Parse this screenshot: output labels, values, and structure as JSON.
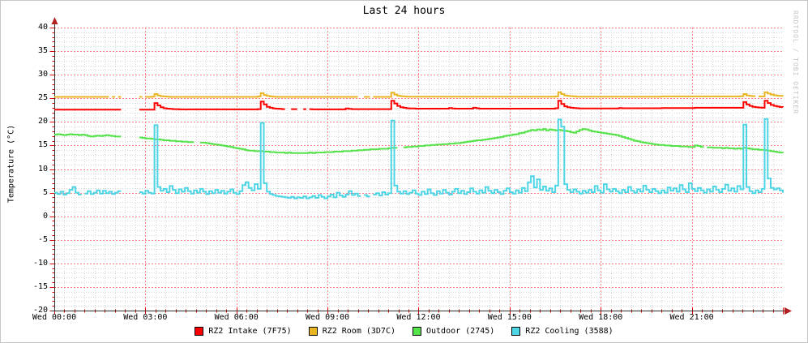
{
  "title": "Last 24 hours",
  "watermark": "RRDTOOL / TOBI OETIKER",
  "colors": {
    "background": "#ffffff",
    "border": "#c6c6c6",
    "axis": "#303030",
    "arrow": "#b22222",
    "tick": "#dd0000",
    "grid_minor": "#d6d6d6",
    "grid_major": "#ff8585",
    "text": "#000000",
    "watermark": "#c4c4c4"
  },
  "chart_data": {
    "type": "line",
    "title": "Last 24 hours",
    "xlabel": "",
    "ylabel": "Temperature (°C)",
    "ylim": [
      -20,
      40
    ],
    "y_tick_step": 5,
    "y_minor_step": 1,
    "y_tick_values": [
      40,
      35,
      30,
      25,
      20,
      15,
      10,
      5,
      0,
      -5,
      -10,
      -15,
      -20
    ],
    "x_range_hours": [
      0,
      24
    ],
    "x_minor_step_minutes": 20,
    "x_major_ticks": [
      {
        "hour": 0,
        "label": "Wed 00:00"
      },
      {
        "hour": 3,
        "label": "Wed 03:00"
      },
      {
        "hour": 6,
        "label": "Wed 06:00"
      },
      {
        "hour": 9,
        "label": "Wed 09:00"
      },
      {
        "hour": 12,
        "label": "Wed 12:00"
      },
      {
        "hour": 15,
        "label": "Wed 15:00"
      },
      {
        "hour": 18,
        "label": "Wed 18:00"
      },
      {
        "hour": 21,
        "label": "Wed 21:00"
      }
    ],
    "grid": true,
    "legend_position": "bottom",
    "sample_step_hours": 0.1,
    "series": [
      {
        "name": "RZ2 Intake (7F75)",
        "color": "#ff0000",
        "values": [
          22.6,
          22.6,
          22.6,
          22.6,
          22.6,
          22.6,
          22.6,
          22.6,
          22.6,
          22.6,
          22.6,
          22.6,
          22.6,
          22.6,
          22.6,
          22.6,
          22.6,
          22.6,
          22.6,
          22.6,
          22.6,
          22.6,
          null,
          null,
          null,
          null,
          null,
          null,
          22.6,
          22.6,
          22.6,
          22.6,
          22.6,
          24.0,
          23.5,
          23.1,
          22.9,
          22.8,
          22.75,
          22.7,
          22.7,
          22.65,
          22.65,
          22.65,
          22.65,
          22.65,
          22.65,
          22.65,
          22.65,
          22.65,
          22.65,
          22.65,
          22.65,
          22.65,
          22.65,
          22.65,
          22.65,
          22.65,
          22.65,
          22.65,
          22.65,
          22.65,
          22.65,
          22.65,
          22.65,
          22.65,
          22.65,
          22.7,
          24.3,
          23.7,
          23.2,
          23.0,
          22.85,
          22.8,
          22.75,
          22.7,
          null,
          null,
          22.7,
          22.7,
          null,
          null,
          22.7,
          null,
          22.7,
          22.65,
          22.65,
          22.65,
          22.65,
          22.65,
          22.65,
          22.65,
          22.65,
          22.65,
          22.65,
          22.65,
          22.85,
          22.75,
          22.7,
          22.7,
          22.7,
          22.7,
          22.7,
          22.7,
          22.7,
          22.7,
          22.7,
          22.7,
          22.7,
          22.7,
          22.7,
          24.5,
          23.9,
          23.4,
          23.1,
          23.0,
          22.9,
          22.85,
          22.85,
          22.8,
          22.8,
          22.8,
          22.8,
          22.8,
          22.8,
          22.8,
          22.8,
          22.8,
          22.8,
          22.8,
          22.95,
          22.85,
          22.8,
          22.8,
          22.8,
          22.8,
          22.8,
          22.8,
          23.0,
          22.9,
          22.8,
          22.8,
          22.8,
          22.8,
          22.8,
          22.8,
          22.8,
          22.8,
          22.8,
          22.8,
          22.8,
          22.8,
          22.8,
          22.8,
          22.8,
          22.8,
          22.8,
          22.8,
          22.8,
          22.8,
          22.8,
          22.8,
          22.8,
          22.8,
          22.8,
          22.9,
          24.5,
          23.8,
          23.3,
          23.1,
          23.0,
          22.95,
          22.9,
          22.85,
          22.85,
          22.85,
          22.85,
          22.85,
          22.85,
          22.85,
          22.85,
          22.85,
          22.85,
          22.85,
          22.85,
          22.85,
          22.95,
          22.9,
          22.9,
          22.9,
          22.9,
          22.9,
          22.9,
          22.9,
          22.9,
          22.9,
          22.9,
          22.9,
          22.9,
          22.9,
          22.95,
          22.95,
          22.95,
          22.95,
          22.95,
          22.95,
          22.95,
          22.95,
          22.95,
          22.95,
          22.95,
          23.0,
          23.0,
          23.0,
          23.0,
          23.0,
          23.0,
          23.0,
          23.0,
          23.0,
          23.0,
          23.0,
          23.0,
          23.0,
          23.0,
          23.0,
          23.0,
          24.2,
          23.7,
          23.4,
          23.2,
          23.1,
          23.05,
          23.0,
          24.5,
          24.0,
          23.6,
          23.4,
          23.25,
          23.15,
          23.1
        ]
      },
      {
        "name": "RZ2 Room (3D7C)",
        "color": "#e9b522",
        "values": [
          25.3,
          25.3,
          25.3,
          25.3,
          25.3,
          25.3,
          25.3,
          25.3,
          25.3,
          25.3,
          25.3,
          25.3,
          25.3,
          25.3,
          25.3,
          25.3,
          25.3,
          25.3,
          null,
          25.3,
          null,
          25.3,
          null,
          null,
          null,
          null,
          null,
          null,
          25.3,
          null,
          25.3,
          25.3,
          25.35,
          25.9,
          25.6,
          25.45,
          25.4,
          25.35,
          25.3,
          25.3,
          25.3,
          25.3,
          25.3,
          25.3,
          25.3,
          25.3,
          25.3,
          25.3,
          25.3,
          25.3,
          25.3,
          25.3,
          25.3,
          25.3,
          25.3,
          25.3,
          25.3,
          25.3,
          25.3,
          25.3,
          25.3,
          25.3,
          25.3,
          25.3,
          25.3,
          25.3,
          25.3,
          25.4,
          26.1,
          25.7,
          25.5,
          25.4,
          25.35,
          25.3,
          25.3,
          25.3,
          25.3,
          25.3,
          25.3,
          25.3,
          25.3,
          25.3,
          25.3,
          25.3,
          25.3,
          25.3,
          25.3,
          25.3,
          25.3,
          25.3,
          25.3,
          25.3,
          25.3,
          25.3,
          25.3,
          25.3,
          25.3,
          25.3,
          25.3,
          25.3,
          null,
          null,
          25.3,
          25.3,
          null,
          25.3,
          25.3,
          25.3,
          25.3,
          25.3,
          25.3,
          26.2,
          25.8,
          25.55,
          25.45,
          25.4,
          25.35,
          25.35,
          25.35,
          25.35,
          25.35,
          25.35,
          25.35,
          25.35,
          25.35,
          25.35,
          25.35,
          25.35,
          25.35,
          25.35,
          25.35,
          25.35,
          25.35,
          25.35,
          25.35,
          25.35,
          25.35,
          25.35,
          25.35,
          25.35,
          25.35,
          25.35,
          25.35,
          25.35,
          25.35,
          25.35,
          25.35,
          25.35,
          25.35,
          25.35,
          25.35,
          25.35,
          25.35,
          25.35,
          25.35,
          25.35,
          25.35,
          25.35,
          25.35,
          25.35,
          25.35,
          25.35,
          25.35,
          25.35,
          25.35,
          25.4,
          26.3,
          25.9,
          25.6,
          25.5,
          25.45,
          25.4,
          25.35,
          25.35,
          25.35,
          25.35,
          25.35,
          25.35,
          25.35,
          25.35,
          25.35,
          25.35,
          25.35,
          25.35,
          25.35,
          25.35,
          25.35,
          25.35,
          25.35,
          25.35,
          25.35,
          25.35,
          25.35,
          25.35,
          25.35,
          25.35,
          25.35,
          25.35,
          25.35,
          25.35,
          25.4,
          25.4,
          25.4,
          25.4,
          25.4,
          25.4,
          25.4,
          25.4,
          25.4,
          25.4,
          25.4,
          25.4,
          25.4,
          25.4,
          25.4,
          25.4,
          25.4,
          25.4,
          25.4,
          25.4,
          25.4,
          25.4,
          25.4,
          25.4,
          25.4,
          25.4,
          25.45,
          25.9,
          25.6,
          25.5,
          25.45,
          null,
          25.4,
          25.4,
          26.3,
          26.0,
          25.8,
          25.65,
          25.55,
          25.5,
          25.45
        ]
      },
      {
        "name": "Outdoor (2745)",
        "color": "#55e24a",
        "values": [
          17.3,
          17.4,
          17.3,
          17.2,
          17.3,
          17.4,
          17.3,
          17.3,
          17.2,
          17.3,
          17.2,
          17.0,
          16.9,
          17.0,
          17.1,
          17.0,
          17.1,
          17.2,
          17.1,
          17.0,
          16.9,
          16.9,
          null,
          null,
          null,
          null,
          null,
          null,
          16.7,
          16.6,
          16.5,
          16.5,
          16.4,
          16.3,
          16.3,
          16.2,
          16.1,
          16.1,
          16.0,
          16.0,
          15.9,
          15.9,
          15.8,
          15.8,
          15.7,
          15.7,
          null,
          null,
          15.6,
          15.6,
          15.5,
          15.4,
          15.3,
          15.2,
          15.1,
          15.0,
          14.9,
          14.8,
          14.7,
          14.5,
          14.4,
          14.3,
          14.2,
          14.0,
          13.9,
          13.9,
          13.8,
          13.8,
          13.8,
          13.7,
          13.7,
          13.6,
          13.6,
          13.5,
          13.5,
          13.5,
          13.4,
          13.5,
          13.4,
          13.4,
          13.4,
          13.4,
          13.4,
          13.4,
          13.5,
          13.4,
          13.5,
          13.5,
          13.5,
          13.6,
          13.6,
          13.6,
          13.7,
          13.7,
          13.7,
          13.8,
          13.8,
          13.8,
          13.9,
          13.9,
          14.0,
          14.0,
          14.1,
          14.1,
          14.2,
          14.2,
          14.2,
          14.3,
          14.3,
          14.3,
          14.4,
          14.5,
          14.5,
          null,
          null,
          14.6,
          14.7,
          14.7,
          14.8,
          14.8,
          14.9,
          14.9,
          15.0,
          15.0,
          15.1,
          15.1,
          15.2,
          15.2,
          15.3,
          15.3,
          15.4,
          15.4,
          15.5,
          15.5,
          15.6,
          15.7,
          15.8,
          15.9,
          16.0,
          16.1,
          16.1,
          16.2,
          16.3,
          16.4,
          16.5,
          16.6,
          16.7,
          16.8,
          17.0,
          17.1,
          17.2,
          17.3,
          17.4,
          17.6,
          17.7,
          17.9,
          18.1,
          18.3,
          18.2,
          18.4,
          18.3,
          18.5,
          18.2,
          18.4,
          18.3,
          18.2,
          18.3,
          18.2,
          18.1,
          18.0,
          17.8,
          17.7,
          18.0,
          18.3,
          18.5,
          18.4,
          18.2,
          18.0,
          17.9,
          17.8,
          17.7,
          17.6,
          17.5,
          17.4,
          17.3,
          17.2,
          17.0,
          16.8,
          16.6,
          16.4,
          16.2,
          16.0,
          15.9,
          15.7,
          15.6,
          15.5,
          15.4,
          15.3,
          15.2,
          15.1,
          15.1,
          15.0,
          15.0,
          14.9,
          14.9,
          14.9,
          14.8,
          14.8,
          14.8,
          14.7,
          14.7,
          15.0,
          14.9,
          14.7,
          null,
          14.6,
          14.6,
          14.5,
          14.5,
          14.5,
          14.4,
          14.5,
          14.4,
          14.4,
          14.3,
          14.4,
          14.3,
          14.5,
          14.4,
          14.3,
          14.2,
          14.2,
          14.1,
          14.1,
          14.0,
          13.9,
          13.8,
          13.7,
          13.6,
          13.5,
          13.4
        ]
      },
      {
        "name": "RZ2 Cooling (3588)",
        "color": "#4dd5e6",
        "values": [
          5.0,
          4.7,
          5.2,
          4.6,
          4.9,
          5.6,
          6.2,
          5.0,
          4.6,
          null,
          4.8,
          5.3,
          4.7,
          5.0,
          5.5,
          4.8,
          5.4,
          4.9,
          5.2,
          4.7,
          5.0,
          5.3,
          null,
          null,
          null,
          null,
          null,
          null,
          5.1,
          4.8,
          5.4,
          5.0,
          4.8,
          19.3,
          6.2,
          5.4,
          5.8,
          5.1,
          6.4,
          5.6,
          4.9,
          5.7,
          5.2,
          6.0,
          5.3,
          4.8,
          5.5,
          5.0,
          5.8,
          5.2,
          4.7,
          5.3,
          4.9,
          5.6,
          5.0,
          5.4,
          4.8,
          5.2,
          5.7,
          5.0,
          4.7,
          5.3,
          6.6,
          7.2,
          6.0,
          5.5,
          6.8,
          5.8,
          19.8,
          7.0,
          5.2,
          4.7,
          4.5,
          4.3,
          4.2,
          4.1,
          4.0,
          3.9,
          4.1,
          3.8,
          4.0,
          3.9,
          4.2,
          3.8,
          4.0,
          4.3,
          3.9,
          4.5,
          4.1,
          3.8,
          4.2,
          4.6,
          4.0,
          5.0,
          4.4,
          4.1,
          4.6,
          5.3,
          4.5,
          4.8,
          4.3,
          null,
          4.5,
          4.2,
          null,
          4.6,
          4.9,
          4.4,
          5.1,
          4.6,
          4.9,
          20.3,
          6.5,
          5.2,
          4.8,
          5.3,
          4.7,
          5.0,
          5.5,
          4.8,
          4.5,
          5.2,
          4.7,
          5.7,
          4.9,
          4.5,
          5.3,
          4.8,
          5.6,
          5.0,
          4.6,
          5.2,
          5.8,
          4.9,
          5.4,
          4.7,
          5.1,
          5.9,
          5.2,
          4.8,
          5.5,
          5.0,
          6.2,
          5.4,
          4.9,
          5.6,
          5.1,
          4.7,
          5.4,
          5.9,
          5.1,
          4.8,
          5.5,
          5.0,
          6.0,
          5.3,
          7.2,
          8.5,
          6.1,
          7.8,
          5.6,
          6.3,
          5.4,
          5.9,
          5.1,
          6.5,
          20.5,
          19.0,
          6.8,
          5.6,
          5.1,
          5.7,
          5.2,
          4.8,
          5.4,
          5.0,
          5.6,
          5.1,
          6.4,
          5.5,
          5.0,
          6.8,
          5.7,
          5.2,
          5.8,
          5.3,
          4.9,
          5.6,
          5.1,
          6.2,
          5.4,
          5.0,
          5.7,
          5.2,
          6.5,
          5.6,
          5.1,
          5.8,
          5.3,
          4.9,
          5.5,
          5.0,
          6.1,
          5.4,
          5.9,
          5.2,
          6.6,
          5.7,
          5.1,
          7.0,
          5.8,
          5.3,
          6.0,
          5.5,
          5.0,
          5.7,
          5.2,
          6.3,
          5.6,
          5.1,
          5.8,
          6.7,
          5.4,
          5.9,
          5.2,
          6.4,
          5.7,
          19.4,
          6.2,
          5.3,
          4.9,
          5.5,
          5.1,
          5.8,
          20.6,
          8.0,
          6.0,
          5.7,
          5.9,
          5.5,
          5.0
        ]
      }
    ]
  }
}
